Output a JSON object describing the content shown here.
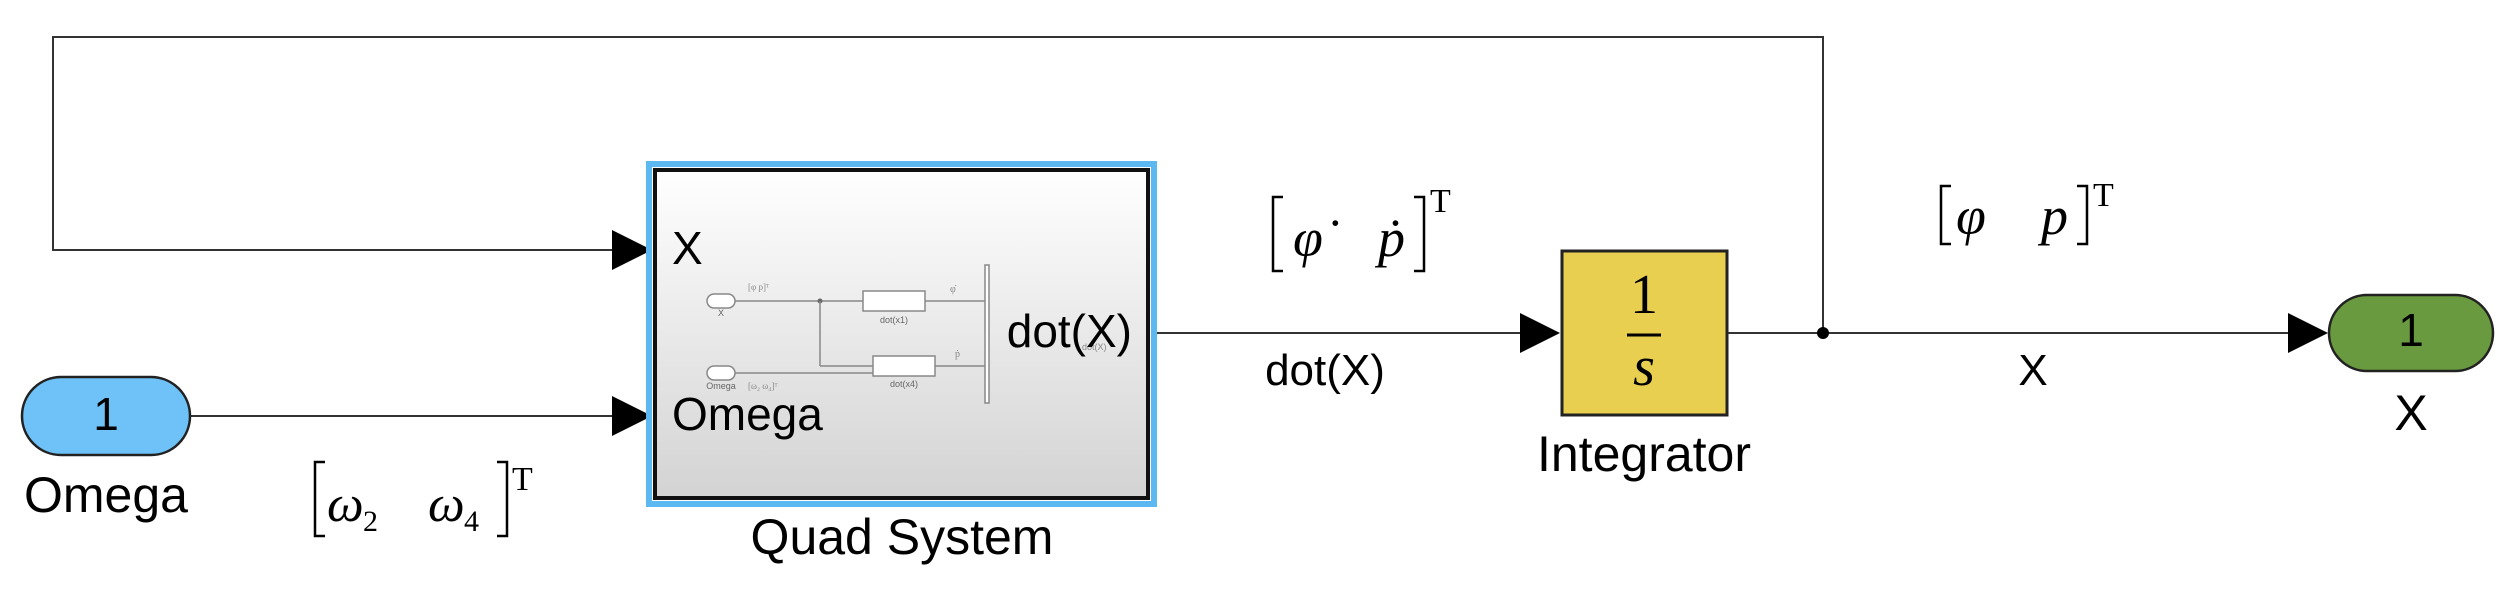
{
  "inport": {
    "number": "1",
    "name": "Omega",
    "color": "#6ec2f7"
  },
  "outport": {
    "number": "1",
    "name": "X",
    "color": "#6a9a3f"
  },
  "subsystem": {
    "name": "Quad System",
    "ports_in": [
      "X",
      "Omega"
    ],
    "port_out": "dot(X)",
    "highlight_color": "#5bb8f0",
    "preview": {
      "in1": "X",
      "in2": "Omega",
      "in1_sig": "[φ  p]ᵀ",
      "in2_sig": "[ω₂  ω₄]ᵀ",
      "block1": "dot(x1)",
      "block2": "dot(x4)",
      "out1_sig": "φ̇",
      "out2_sig": "ṗ",
      "out_label": "dot(X)"
    }
  },
  "integrator": {
    "numerator": "1",
    "denominator": "s",
    "name": "Integrator",
    "color": "#e8cf4f"
  },
  "signals": {
    "omega_vec": {
      "sym1": "ω",
      "sub1": "2",
      "sym2": "ω",
      "sub2": "4",
      "sup": "T"
    },
    "dot_vec": {
      "sym1": "φ̇",
      "sym2": "ṗ",
      "sup": "T"
    },
    "state_vec": {
      "sym1": "φ",
      "sym2": "p",
      "sup": "T"
    },
    "dot_label": "dot(X)",
    "x_label": "X"
  }
}
